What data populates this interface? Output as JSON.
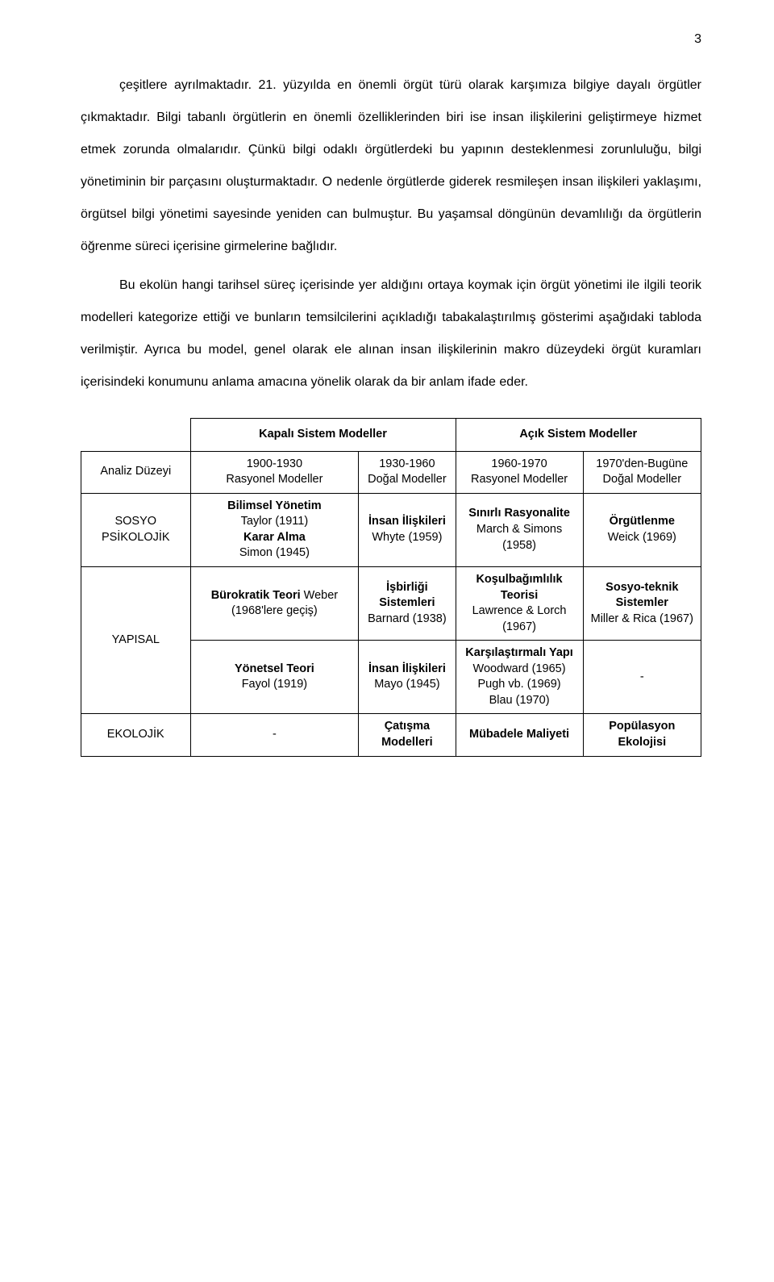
{
  "page_number": "3",
  "paragraphs": [
    "çeşitlere ayrılmaktadır. 21. yüzyılda en önemli örgüt türü olarak karşımıza bilgiye dayalı örgütler çıkmaktadır. Bilgi tabanlı örgütlerin en önemli özelliklerinden biri ise insan ilişkilerini geliştirmeye hizmet etmek zorunda olmalarıdır. Çünkü bilgi odaklı örgütlerdeki bu yapının desteklenmesi zorunluluğu, bilgi yönetiminin bir parçasını oluşturmaktadır. O nedenle örgütlerde giderek resmileşen insan ilişkileri yaklaşımı, örgütsel bilgi yönetimi sayesinde yeniden can bulmuştur. Bu yaşamsal döngünün devamlılığı da örgütlerin öğrenme süreci içerisine girmelerine bağlıdır.",
    "Bu ekolün hangi tarihsel süreç içerisinde yer aldığını ortaya koymak için örgüt yönetimi ile ilgili teorik modelleri kategorize ettiği ve bunların temsilcilerini açıkladığı tabakalaştırılmış gösterimi aşağıdaki tabloda verilmiştir. Ayrıca bu model, genel olarak ele alınan insan ilişkilerinin makro düzeydeki örgüt kuramları içerisindeki konumunu anlama amacına yönelik olarak da bir anlam ifade eder."
  ],
  "table": {
    "group_headers": [
      "Kapalı Sistem Modeller",
      "Açık Sistem Modeller"
    ],
    "col_headers": {
      "analysis_level": "Analiz Düzeyi",
      "c1": {
        "period": "1900-1930",
        "label": "Rasyonel Modeller"
      },
      "c2": {
        "period": "1930-1960",
        "label": "Doğal Modeller"
      },
      "c3": {
        "period": "1960-1970",
        "label": "Rasyonel Modeller"
      },
      "c4": {
        "period": "1970'den-Bugüne",
        "label": "Doğal Modeller"
      }
    },
    "rows": {
      "sosyo": {
        "label": "SOSYO PSİKOLOJİK",
        "c1": {
          "bold": "Bilimsel Yönetim",
          "plain1": "Taylor (1911)",
          "bold2": "Karar Alma",
          "plain2": "Simon (1945)"
        },
        "c2": {
          "bold": "İnsan İlişkileri",
          "plain": "Whyte (1959)"
        },
        "c3": {
          "bold": "Sınırlı Rasyonalite",
          "plain": "March & Simons (1958)"
        },
        "c4": {
          "bold": "Örgütlenme",
          "plain": "Weick (1969)"
        }
      },
      "yapisal": {
        "label": "YAPISAL",
        "r1": {
          "c1": {
            "bold": "Bürokratik Teori",
            "plain": "Weber (1968'lere geçiş)"
          },
          "c2": {
            "bold": "İşbirliği Sistemleri",
            "plain": "Barnard (1938)"
          },
          "c3": {
            "bold": "Koşulbağımlılık Teorisi",
            "plain": "Lawrence & Lorch (1967)"
          },
          "c4": {
            "bold": "Sosyo-teknik Sistemler",
            "plain": "Miller & Rica (1967)"
          }
        },
        "r2": {
          "c1": {
            "bold": "Yönetsel Teori",
            "plain": "Fayol (1919)"
          },
          "c2": {
            "bold": "İnsan İlişkileri",
            "plain": "Mayo (1945)"
          },
          "c3": {
            "bold": "Karşılaştırmalı Yapı",
            "plain1": "Woodward (1965)",
            "plain2": "Pugh vb. (1969)",
            "plain3": "Blau (1970)"
          },
          "c4": "-"
        }
      },
      "ekolojik": {
        "label": "EKOLOJİK",
        "c1": "-",
        "c2": {
          "bold": "Çatışma Modelleri"
        },
        "c3": {
          "bold": "Mübadele Maliyeti"
        },
        "c4": {
          "bold": "Popülasyon Ekolojisi"
        }
      }
    }
  }
}
